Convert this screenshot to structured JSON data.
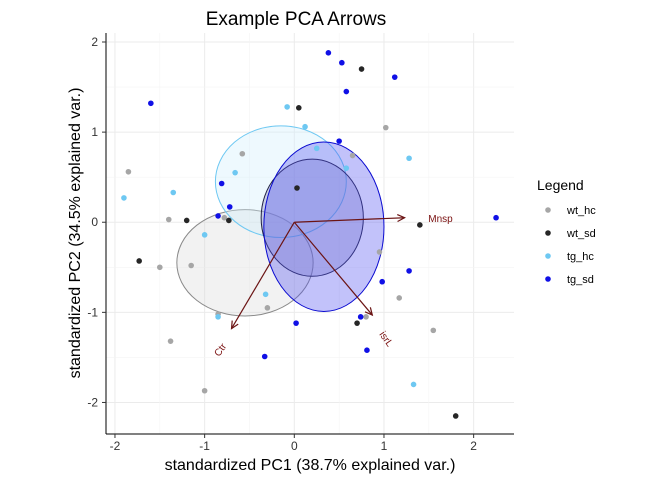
{
  "chart_data": {
    "type": "scatter",
    "title": "Example PCA Arrows",
    "xlabel": "standardized PC1 (38.7% explained var.)",
    "ylabel": "standardized PC2 (34.5% explained var.)",
    "xlim": [
      -2.1,
      2.45
    ],
    "ylim": [
      -2.35,
      2.1
    ],
    "x_ticks": [
      -2,
      -1,
      0,
      1,
      2
    ],
    "y_ticks": [
      -2,
      -1,
      0,
      1,
      2
    ],
    "x_tick_labels": [
      "-2",
      "-1",
      "0",
      "1",
      "2"
    ],
    "y_tick_labels": [
      "-2",
      "-1",
      "0",
      "1",
      "2"
    ],
    "grid": true,
    "legend": {
      "title": "Legend",
      "position": "right"
    },
    "series": [
      {
        "name": "wt_hc",
        "color": "#a6a6a6",
        "points": [
          [
            -1.85,
            0.56
          ],
          [
            -1.4,
            0.03
          ],
          [
            -1.5,
            -0.5
          ],
          [
            -1.15,
            -0.48
          ],
          [
            -1.38,
            -1.32
          ],
          [
            -0.85,
            -1.02
          ],
          [
            -0.78,
            0.05
          ],
          [
            -0.58,
            0.76
          ],
          [
            -1.0,
            -1.87
          ],
          [
            -0.3,
            -0.95
          ],
          [
            1.02,
            1.05
          ],
          [
            0.65,
            0.74
          ],
          [
            0.95,
            -0.33
          ],
          [
            1.17,
            -0.84
          ],
          [
            1.55,
            -1.2
          ],
          [
            0.8,
            -1.05
          ]
        ]
      },
      {
        "name": "wt_sd",
        "color": "#262626",
        "points": [
          [
            -1.73,
            -0.43
          ],
          [
            -1.2,
            0.02
          ],
          [
            -0.73,
            0.02
          ],
          [
            0.05,
            1.27
          ],
          [
            0.03,
            0.38
          ],
          [
            0.75,
            1.7
          ],
          [
            1.4,
            -0.03
          ],
          [
            0.7,
            -1.12
          ],
          [
            1.8,
            -2.15
          ]
        ]
      },
      {
        "name": "tg_hc",
        "color": "#6ec8f2",
        "points": [
          [
            -1.9,
            0.27
          ],
          [
            -1.35,
            0.33
          ],
          [
            -1.0,
            -0.14
          ],
          [
            -0.66,
            0.55
          ],
          [
            -0.08,
            1.28
          ],
          [
            0.12,
            1.06
          ],
          [
            0.25,
            0.82
          ],
          [
            0.58,
            0.6
          ],
          [
            1.28,
            0.71
          ],
          [
            -0.85,
            -1.05
          ],
          [
            -0.32,
            -0.8
          ],
          [
            1.33,
            -1.8
          ]
        ]
      },
      {
        "name": "tg_sd",
        "color": "#1010e6",
        "points": [
          [
            -1.6,
            1.32
          ],
          [
            0.38,
            1.88
          ],
          [
            0.53,
            1.77
          ],
          [
            0.58,
            1.45
          ],
          [
            1.12,
            1.61
          ],
          [
            0.5,
            0.9
          ],
          [
            -0.81,
            0.43
          ],
          [
            -0.72,
            0.17
          ],
          [
            -0.85,
            0.07
          ],
          [
            2.25,
            0.05
          ],
          [
            1.28,
            -0.54
          ],
          [
            0.98,
            -0.66
          ],
          [
            0.02,
            -1.12
          ],
          [
            0.74,
            -1.05
          ],
          [
            0.81,
            -1.42
          ],
          [
            -0.33,
            -1.49
          ]
        ]
      }
    ],
    "ellipses": [
      {
        "group": "wt_hc",
        "cx": -0.55,
        "cy": -0.45,
        "rx": 0.76,
        "ry": 0.59,
        "stroke": "#8a8a8a",
        "fill": "#d9d9d9"
      },
      {
        "group": "tg_hc",
        "cx": -0.15,
        "cy": 0.45,
        "rx": 0.73,
        "ry": 0.62,
        "stroke": "#6ec8f2",
        "fill": "#cdeefc"
      },
      {
        "group": "wt_sd",
        "cx": 0.2,
        "cy": 0.05,
        "rx": 0.57,
        "ry": 0.65,
        "stroke": "#222244",
        "fill": "#8080c0"
      },
      {
        "group": "tg_sd",
        "cx": 0.33,
        "cy": -0.05,
        "rx": 0.67,
        "ry": 0.94,
        "stroke": "#0a0ad0",
        "fill": "#5050f0"
      }
    ],
    "arrows": [
      {
        "label": "Mnsp",
        "x": 1.23,
        "y": 0.05,
        "label_x": 1.63,
        "label_y": 0.03,
        "rotate": 0
      },
      {
        "label": "Ctr",
        "x": -0.7,
        "y": -1.18,
        "label_x": -0.82,
        "label_y": -1.42,
        "rotate": -55
      },
      {
        "label": "isrL",
        "x": 0.87,
        "y": -1.03,
        "label_x": 1.02,
        "label_y": -1.3,
        "rotate": 55
      }
    ],
    "arrow_color": "#6b1414"
  }
}
